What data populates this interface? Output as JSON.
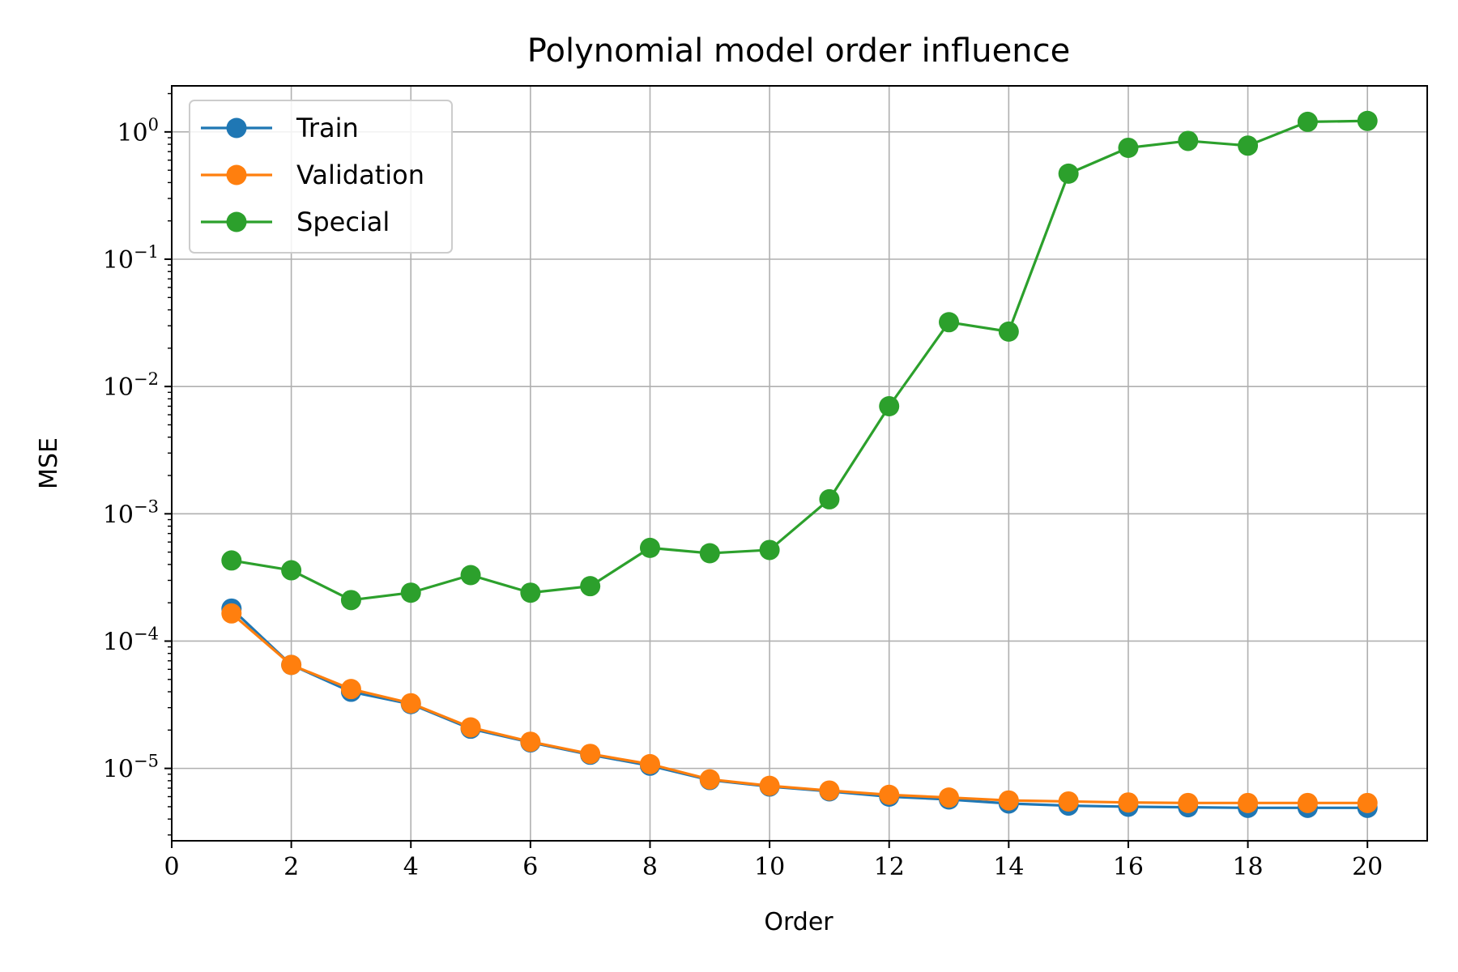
{
  "chart_data": {
    "type": "line",
    "title": "Polynomial model order influence",
    "xlabel": "Order",
    "ylabel": "MSE",
    "xlim": [
      0,
      21
    ],
    "ylim": [
      2.7e-06,
      2.3
    ],
    "yscale": "log",
    "grid": true,
    "legend_position": "top-left",
    "x_ticks": [
      0,
      2,
      4,
      6,
      8,
      10,
      12,
      14,
      16,
      18,
      20
    ],
    "y_ticks": [
      {
        "value": 1e-05,
        "base": "10",
        "exp": "−5"
      },
      {
        "value": 0.0001,
        "base": "10",
        "exp": "−4"
      },
      {
        "value": 0.001,
        "base": "10",
        "exp": "−3"
      },
      {
        "value": 0.01,
        "base": "10",
        "exp": "−2"
      },
      {
        "value": 0.1,
        "base": "10",
        "exp": "−1"
      },
      {
        "value": 1,
        "base": "10",
        "exp": "0"
      }
    ],
    "x": [
      1,
      2,
      3,
      4,
      5,
      6,
      7,
      8,
      9,
      10,
      11,
      12,
      13,
      14,
      15,
      16,
      17,
      18,
      19,
      20
    ],
    "series": [
      {
        "name": "Train",
        "color": "#1f77b4",
        "values": [
          0.00018,
          6.5e-05,
          4e-05,
          3.2e-05,
          2.05e-05,
          1.6e-05,
          1.28e-05,
          1.05e-05,
          8.1e-06,
          7.2e-06,
          6.6e-06,
          6e-06,
          5.7e-06,
          5.3e-06,
          5.1e-06,
          5e-06,
          4.95e-06,
          4.9e-06,
          4.9e-06,
          4.9e-06
        ]
      },
      {
        "name": "Validation",
        "color": "#ff7f0e",
        "values": [
          0.000165,
          6.5e-05,
          4.2e-05,
          3.25e-05,
          2.1e-05,
          1.62e-05,
          1.3e-05,
          1.08e-05,
          8.2e-06,
          7.3e-06,
          6.7e-06,
          6.2e-06,
          5.9e-06,
          5.6e-06,
          5.5e-06,
          5.4e-06,
          5.35e-06,
          5.35e-06,
          5.35e-06,
          5.35e-06
        ]
      },
      {
        "name": "Special",
        "color": "#2ca02c",
        "values": [
          0.00043,
          0.00036,
          0.00021,
          0.00024,
          0.00033,
          0.00024,
          0.00027,
          0.00054,
          0.00049,
          0.00052,
          0.0013,
          0.007,
          0.032,
          0.027,
          0.47,
          0.75,
          0.85,
          0.78,
          1.2,
          1.22
        ]
      }
    ]
  }
}
